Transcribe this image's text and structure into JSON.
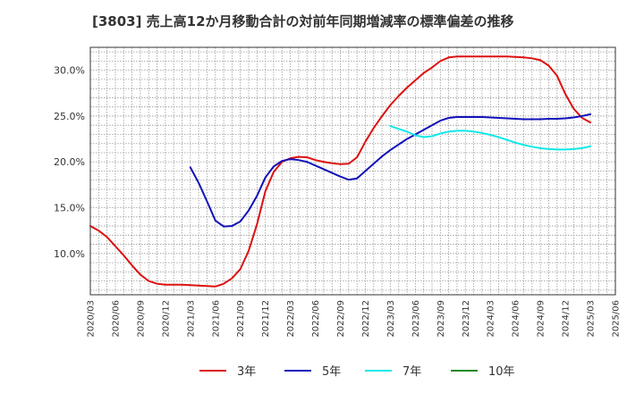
{
  "chart_data": {
    "type": "line",
    "title": "[3803]  売上高12か月移動合計の対前年同期増減率の標準偏差の推移",
    "xlabel": "",
    "ylabel": "",
    "ylim": [
      5.5,
      32.5
    ],
    "y_ticks": [
      10,
      15,
      20,
      25,
      30
    ],
    "y_tick_labels": [
      "10.0%",
      "15.0%",
      "20.0%",
      "25.0%",
      "30.0%"
    ],
    "x_ticks": [
      "2020/03",
      "2020/06",
      "2020/09",
      "2020/12",
      "2021/03",
      "2021/06",
      "2021/09",
      "2021/12",
      "2022/03",
      "2022/06",
      "2022/09",
      "2022/12",
      "2023/03",
      "2023/06",
      "2023/09",
      "2023/12",
      "2024/03",
      "2024/06",
      "2024/09",
      "2024/12",
      "2025/03",
      "2025/06"
    ],
    "grid": true,
    "legend_position": "bottom",
    "series": [
      {
        "name": "3年",
        "color": "#dd1111",
        "x": [
          "2020/03",
          "2020/04",
          "2020/05",
          "2020/06",
          "2020/07",
          "2020/08",
          "2020/09",
          "2020/10",
          "2020/11",
          "2020/12",
          "2021/01",
          "2021/02",
          "2021/03",
          "2021/04",
          "2021/05",
          "2021/06",
          "2021/07",
          "2021/08",
          "2021/09",
          "2021/10",
          "2021/11",
          "2021/12",
          "2022/01",
          "2022/02",
          "2022/03",
          "2022/04",
          "2022/05",
          "2022/06",
          "2022/07",
          "2022/08",
          "2022/09",
          "2022/10",
          "2022/11",
          "2022/12",
          "2023/01",
          "2023/02",
          "2023/03",
          "2023/04",
          "2023/05",
          "2023/06",
          "2023/07",
          "2023/08",
          "2023/09",
          "2023/10",
          "2023/11",
          "2023/12",
          "2024/01",
          "2024/02",
          "2024/03",
          "2024/04",
          "2024/05",
          "2024/06",
          "2024/07",
          "2024/08",
          "2024/09",
          "2024/10",
          "2024/11",
          "2024/12",
          "2025/01",
          "2025/02",
          "2025/03"
        ],
        "values": [
          13.0,
          12.5,
          11.8,
          10.8,
          9.8,
          8.7,
          7.7,
          7.0,
          6.7,
          6.6,
          6.6,
          6.6,
          6.55,
          6.5,
          6.45,
          6.4,
          6.7,
          7.3,
          8.3,
          10.3,
          13.2,
          16.8,
          18.9,
          20.0,
          20.4,
          20.55,
          20.5,
          20.2,
          20.0,
          19.85,
          19.75,
          19.8,
          20.5,
          22.2,
          23.7,
          25.0,
          26.2,
          27.2,
          28.1,
          28.9,
          29.7,
          30.3,
          31.0,
          31.4,
          31.5,
          31.5,
          31.5,
          31.5,
          31.5,
          31.5,
          31.5,
          31.45,
          31.4,
          31.3,
          31.1,
          30.5,
          29.4,
          27.4,
          25.8,
          24.8,
          24.3
        ]
      },
      {
        "name": "5年",
        "color": "#1111bb",
        "x": [
          "2021/03",
          "2021/04",
          "2021/05",
          "2021/06",
          "2021/07",
          "2021/08",
          "2021/09",
          "2021/10",
          "2021/11",
          "2021/12",
          "2022/01",
          "2022/02",
          "2022/03",
          "2022/04",
          "2022/05",
          "2022/06",
          "2022/07",
          "2022/08",
          "2022/09",
          "2022/10",
          "2022/11",
          "2022/12",
          "2023/01",
          "2023/02",
          "2023/03",
          "2023/04",
          "2023/05",
          "2023/06",
          "2023/07",
          "2023/08",
          "2023/09",
          "2023/10",
          "2023/11",
          "2023/12",
          "2024/01",
          "2024/02",
          "2024/03",
          "2024/04",
          "2024/05",
          "2024/06",
          "2024/07",
          "2024/08",
          "2024/09",
          "2024/10",
          "2024/11",
          "2024/12",
          "2025/01",
          "2025/02",
          "2025/03"
        ],
        "values": [
          19.4,
          17.7,
          15.7,
          13.6,
          12.95,
          13.0,
          13.5,
          14.7,
          16.3,
          18.3,
          19.5,
          20.1,
          20.3,
          20.2,
          20.0,
          19.6,
          19.2,
          18.8,
          18.4,
          18.05,
          18.2,
          19.0,
          19.8,
          20.6,
          21.3,
          21.9,
          22.5,
          23.0,
          23.5,
          24.0,
          24.5,
          24.8,
          24.9,
          24.9,
          24.9,
          24.9,
          24.85,
          24.8,
          24.75,
          24.7,
          24.65,
          24.65,
          24.65,
          24.7,
          24.7,
          24.75,
          24.85,
          25.0,
          25.2
        ]
      },
      {
        "name": "7年",
        "color": "#11e8e8",
        "x": [
          "2023/03",
          "2023/04",
          "2023/05",
          "2023/06",
          "2023/07",
          "2023/08",
          "2023/09",
          "2023/10",
          "2023/11",
          "2023/12",
          "2024/01",
          "2024/02",
          "2024/03",
          "2024/04",
          "2024/05",
          "2024/06",
          "2024/07",
          "2024/08",
          "2024/09",
          "2024/10",
          "2024/11",
          "2024/12",
          "2025/01",
          "2025/02",
          "2025/03"
        ],
        "values": [
          23.9,
          23.6,
          23.3,
          22.9,
          22.7,
          22.8,
          23.1,
          23.3,
          23.4,
          23.4,
          23.3,
          23.15,
          22.95,
          22.7,
          22.4,
          22.1,
          21.85,
          21.65,
          21.5,
          21.4,
          21.35,
          21.35,
          21.4,
          21.5,
          21.7
        ]
      },
      {
        "name": "10年",
        "color": "#228822",
        "x": [],
        "values": []
      }
    ]
  }
}
